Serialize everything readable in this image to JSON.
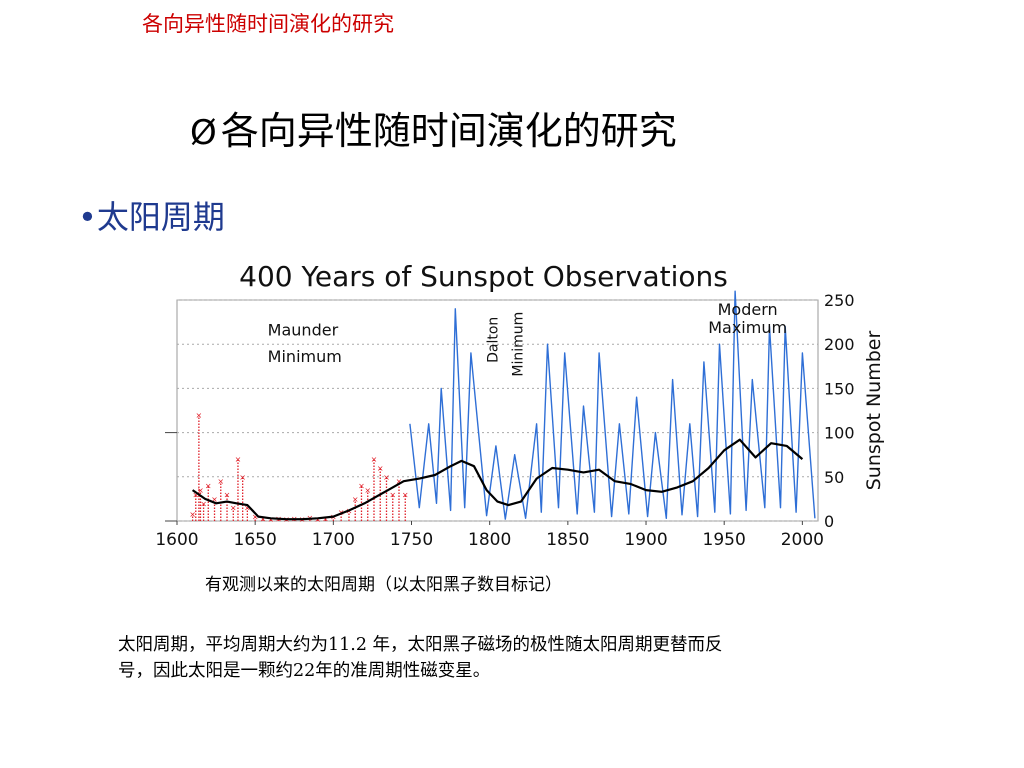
{
  "header": {
    "text": "各向异性随时间演化的研究"
  },
  "slide": {
    "title": "各向异性随时间演化的研究",
    "title_marker": "Ø",
    "bullet_marker": "•",
    "bullet": "太阳周期",
    "caption": "有观测以来的太阳周期（以太阳黑子数目标记）",
    "body_line1": "太阳周期，平均周期大约为11.2 年，太阳黑子磁场的极性随太阳周期更替而反",
    "body_line2": "号，因此太阳是一颗约22年的准周期性磁变星。"
  },
  "colors": {
    "header": "#cc0000",
    "bullet": "#1f3a8f",
    "series_blue": "#2f6fd6",
    "series_red": "#e0202a",
    "smooth": "#000000"
  },
  "chart_data": {
    "type": "line",
    "title": "400 Years of Sunspot Observations",
    "ylabel": "Sunspot Number",
    "xlabel": "",
    "xlim": [
      1600,
      2010
    ],
    "ylim": [
      0,
      250
    ],
    "x_ticks": [
      1600,
      1650,
      1700,
      1750,
      1800,
      1850,
      1900,
      1950,
      2000
    ],
    "y_ticks": [
      0,
      50,
      100,
      150,
      200,
      250
    ],
    "grid": "horizontal-dotted",
    "annotations": [
      {
        "text": "Maunder Minimum",
        "x": 1660,
        "y": 95
      },
      {
        "text": "Dalton Minimum",
        "x": 1807,
        "y": 120
      },
      {
        "text": "Modern Maximum",
        "x": 1960,
        "y": 230
      }
    ],
    "series": [
      {
        "style": "red-scatter",
        "x": [
          1610,
          1612,
          1614,
          1615,
          1617,
          1620,
          1624,
          1628,
          1632,
          1636,
          1639,
          1642,
          1645,
          1650,
          1655,
          1660,
          1665,
          1670,
          1675,
          1680,
          1685,
          1690,
          1695,
          1700,
          1705,
          1710,
          1714,
          1718,
          1722,
          1726,
          1730,
          1734,
          1738,
          1742,
          1746
        ],
        "values": [
          8,
          30,
          120,
          35,
          20,
          40,
          25,
          45,
          30,
          15,
          70,
          50,
          15,
          5,
          3,
          2,
          3,
          2,
          3,
          2,
          4,
          2,
          3,
          5,
          10,
          12,
          25,
          40,
          35,
          70,
          60,
          50,
          30,
          45,
          30
        ]
      },
      {
        "style": "blue-monthly",
        "x": [
          1749,
          1755,
          1761,
          1766,
          1769,
          1775,
          1778,
          1784,
          1788,
          1798,
          1804,
          1810,
          1816,
          1823,
          1830,
          1833,
          1837,
          1844,
          1848,
          1856,
          1860,
          1867,
          1870,
          1878,
          1883,
          1889,
          1894,
          1901,
          1906,
          1913,
          1917,
          1923,
          1928,
          1933,
          1937,
          1944,
          1947,
          1954,
          1957,
          1964,
          1968,
          1976,
          1979,
          1986,
          1989,
          1996,
          2000,
          2008
        ],
        "values": [
          110,
          15,
          110,
          20,
          150,
          12,
          240,
          15,
          190,
          6,
          85,
          2,
          75,
          3,
          110,
          10,
          200,
          15,
          190,
          8,
          130,
          10,
          190,
          5,
          110,
          8,
          140,
          5,
          100,
          3,
          160,
          7,
          110,
          5,
          180,
          10,
          200,
          8,
          260,
          12,
          160,
          15,
          220,
          15,
          220,
          10,
          190,
          3
        ]
      },
      {
        "style": "smoothed",
        "x": [
          1610,
          1618,
          1625,
          1632,
          1638,
          1645,
          1652,
          1660,
          1670,
          1680,
          1690,
          1700,
          1710,
          1720,
          1728,
          1735,
          1745,
          1755,
          1765,
          1775,
          1782,
          1790,
          1798,
          1805,
          1812,
          1820,
          1830,
          1840,
          1850,
          1860,
          1870,
          1880,
          1890,
          1900,
          1910,
          1920,
          1930,
          1940,
          1950,
          1960,
          1970,
          1980,
          1990,
          2000
        ],
        "values": [
          35,
          25,
          20,
          22,
          20,
          18,
          5,
          3,
          2,
          2,
          3,
          5,
          12,
          20,
          28,
          35,
          45,
          48,
          52,
          62,
          68,
          62,
          35,
          22,
          18,
          22,
          48,
          60,
          58,
          55,
          58,
          45,
          42,
          35,
          33,
          38,
          45,
          60,
          80,
          92,
          72,
          88,
          85,
          70
        ]
      }
    ]
  }
}
